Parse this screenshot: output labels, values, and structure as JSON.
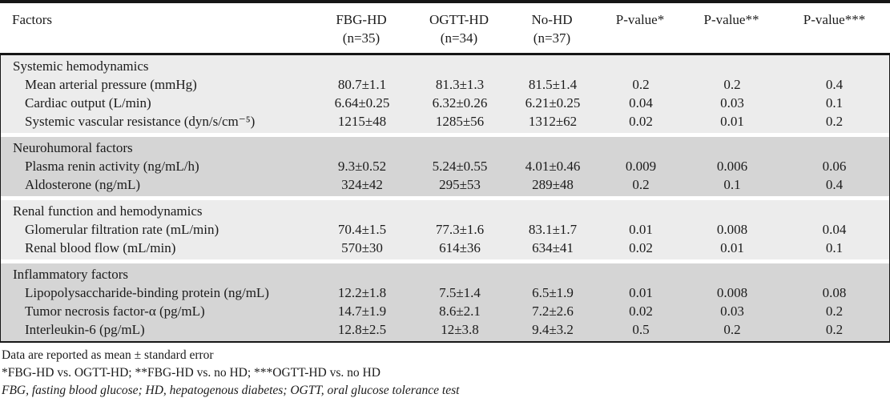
{
  "colors": {
    "section_light": "#ececec",
    "section_dark": "#d5d5d5",
    "border": "#161616",
    "text": "#1b1b1b"
  },
  "chart_data": {
    "type": "table",
    "title": "Factors compared across FBG-HD, OGTT-HD and No-HD groups"
  },
  "header": {
    "factors_label": "Factors",
    "groups": [
      {
        "name": "FBG-HD",
        "n": "(n=35)"
      },
      {
        "name": "OGTT-HD",
        "n": "(n=34)"
      },
      {
        "name": "No-HD",
        "n": "(n=37)"
      }
    ],
    "pvalues": [
      "P-value*",
      "P-value**",
      "P-value***"
    ]
  },
  "sections": [
    {
      "title": "Systemic hemodynamics",
      "rows": [
        {
          "label": "Mean arterial pressure (mmHg)",
          "values": [
            "80.7±1.1",
            "81.3±1.3",
            "81.5±1.4",
            "0.2",
            "0.2",
            "0.4"
          ]
        },
        {
          "label": "Cardiac output (L/min)",
          "values": [
            "6.64±0.25",
            "6.32±0.26",
            "6.21±0.25",
            "0.04",
            "0.03",
            "0.1"
          ]
        },
        {
          "label": "Systemic vascular resistance (dyn/s/cm⁻⁵)",
          "values": [
            "1215±48",
            "1285±56",
            "1312±62",
            "0.02",
            "0.01",
            "0.2"
          ]
        }
      ]
    },
    {
      "title": "Neurohumoral factors",
      "rows": [
        {
          "label": "Plasma renin activity (ng/mL/h)",
          "values": [
            "9.3±0.52",
            "5.24±0.55",
            "4.01±0.46",
            "0.009",
            "0.006",
            "0.06"
          ]
        },
        {
          "label": "Aldosterone (ng/mL)",
          "values": [
            "324±42",
            "295±53",
            "289±48",
            "0.2",
            "0.1",
            "0.4"
          ]
        }
      ]
    },
    {
      "title": "Renal function and hemodynamics",
      "rows": [
        {
          "label": "Glomerular filtration rate (mL/min)",
          "values": [
            "70.4±1.5",
            "77.3±1.6",
            "83.1±1.7",
            "0.01",
            "0.008",
            "0.04"
          ]
        },
        {
          "label": "Renal blood flow (mL/min)",
          "values": [
            "570±30",
            "614±36",
            "634±41",
            "0.02",
            "0.01",
            "0.1"
          ]
        }
      ]
    },
    {
      "title": "Inflammatory factors",
      "rows": [
        {
          "label": "Lipopolysaccharide-binding protein (ng/mL)",
          "values": [
            "12.2±1.8",
            "7.5±1.4",
            "6.5±1.9",
            "0.01",
            "0.008",
            "0.08"
          ]
        },
        {
          "label": "Tumor necrosis factor-α (pg/mL)",
          "values": [
            "14.7±1.9",
            "8.6±2.1",
            "7.2±2.6",
            "0.02",
            "0.03",
            "0.2"
          ]
        },
        {
          "label": "Interleukin-6 (pg/mL)",
          "values": [
            "12.8±2.5",
            "12±3.8",
            "9.4±3.2",
            "0.5",
            "0.2",
            "0.2"
          ]
        }
      ]
    }
  ],
  "footnotes": [
    "Data are reported as mean ± standard error",
    "*FBG-HD vs. OGTT-HD; **FBG-HD vs. no HD; ***OGTT-HD vs. no HD",
    "FBG, fasting blood glucose; HD, hepatogenous diabetes; OGTT, oral glucose tolerance test"
  ]
}
